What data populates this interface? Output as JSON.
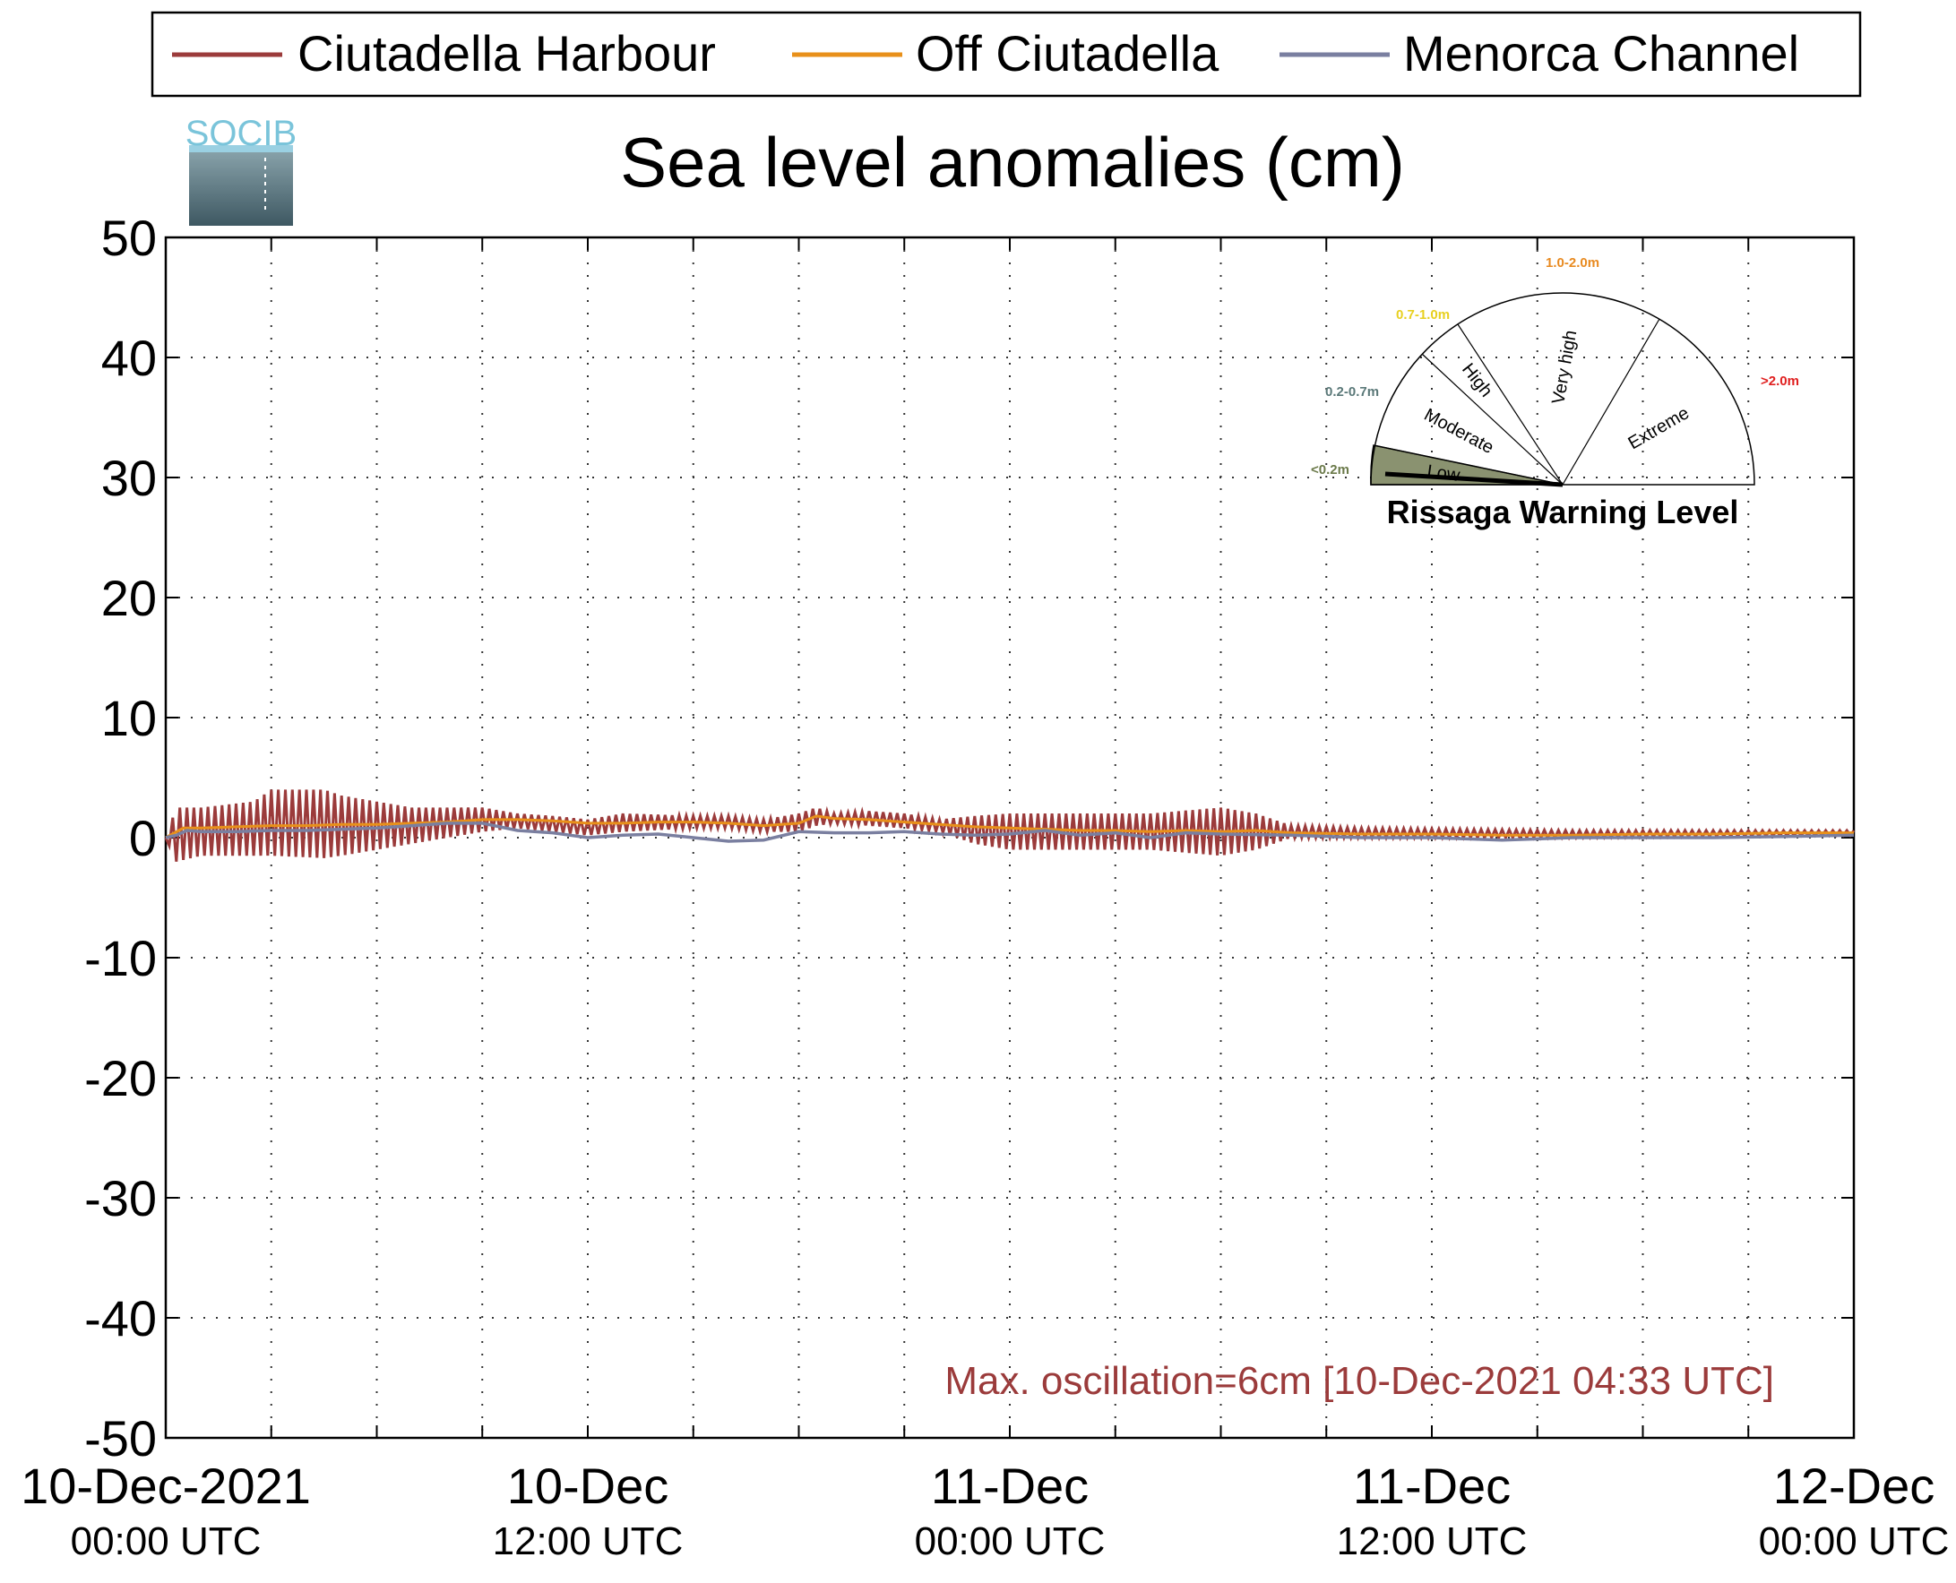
{
  "chart_data": {
    "type": "line",
    "title": "Sea level anomalies (cm)",
    "logo_text": "SOCIB",
    "ylim": [
      -50,
      50
    ],
    "yticks": [
      50,
      40,
      30,
      20,
      10,
      0,
      -10,
      -20,
      -30,
      -40,
      -50
    ],
    "xrange_hours": [
      0,
      48
    ],
    "xticks": [
      {
        "h": 0,
        "line1": "10-Dec-2021",
        "line2": "00:00 UTC"
      },
      {
        "h": 12,
        "line1": "10-Dec",
        "line2": "12:00 UTC"
      },
      {
        "h": 24,
        "line1": "11-Dec",
        "line2": "00:00 UTC"
      },
      {
        "h": 36,
        "line1": "11-Dec",
        "line2": "12:00 UTC"
      },
      {
        "h": 48,
        "line1": "12-Dec",
        "line2": "00:00 UTC"
      }
    ],
    "minor_grid_hours": [
      3,
      6,
      9,
      15,
      18,
      21,
      27,
      30,
      33,
      39,
      42,
      45
    ],
    "grid": true,
    "legend": {
      "placement": "top",
      "entries": [
        {
          "name": "Ciutadella Harbour",
          "color": "#9b3b3b"
        },
        {
          "name": "Off Ciutadella",
          "color": "#e8901a"
        },
        {
          "name": "Menorca Channel",
          "color": "#7a7fa0"
        }
      ]
    },
    "series": [
      {
        "name": "Ciutadella Harbour",
        "color": "#9b3b3b",
        "envelope": [
          {
            "h": 0,
            "low": 0,
            "high": 0
          },
          {
            "h": 0.3,
            "low": -2,
            "high": 2.5
          },
          {
            "h": 1,
            "low": -1.5,
            "high": 2.5
          },
          {
            "h": 2.5,
            "low": -1.5,
            "high": 3
          },
          {
            "h": 3,
            "low": -1.5,
            "high": 4
          },
          {
            "h": 4.5,
            "low": -1.7,
            "high": 4
          },
          {
            "h": 5,
            "low": -1.5,
            "high": 3.5
          },
          {
            "h": 6,
            "low": -1,
            "high": 3
          },
          {
            "h": 7,
            "low": -0.5,
            "high": 2.5
          },
          {
            "h": 8,
            "low": 0,
            "high": 2.5
          },
          {
            "h": 9,
            "low": 0.5,
            "high": 2.5
          },
          {
            "h": 10,
            "low": 0.8,
            "high": 2
          },
          {
            "h": 11,
            "low": 0.5,
            "high": 1.8
          },
          {
            "h": 12,
            "low": 0.2,
            "high": 1.5
          },
          {
            "h": 13,
            "low": 0.5,
            "high": 2
          },
          {
            "h": 15,
            "low": 0.8,
            "high": 1.8
          },
          {
            "h": 16,
            "low": 0.8,
            "high": 1.8
          },
          {
            "h": 17,
            "low": 0.5,
            "high": 1.5
          },
          {
            "h": 18,
            "low": 0.5,
            "high": 2
          },
          {
            "h": 18.5,
            "low": 1,
            "high": 2.5
          },
          {
            "h": 19,
            "low": 1.2,
            "high": 2
          },
          {
            "h": 20,
            "low": 1,
            "high": 2.2
          },
          {
            "h": 21,
            "low": 0.8,
            "high": 2
          },
          {
            "h": 22,
            "low": 0.5,
            "high": 1.5
          },
          {
            "h": 23,
            "low": -0.5,
            "high": 1.8
          },
          {
            "h": 24,
            "low": -1,
            "high": 2
          },
          {
            "h": 26,
            "low": -1,
            "high": 2
          },
          {
            "h": 28,
            "low": -1,
            "high": 2
          },
          {
            "h": 30,
            "low": -1.5,
            "high": 2.5
          },
          {
            "h": 31,
            "low": -1,
            "high": 2
          },
          {
            "h": 32,
            "low": 0,
            "high": 1
          },
          {
            "h": 34,
            "low": 0,
            "high": 0.8
          },
          {
            "h": 40,
            "low": 0,
            "high": 0.6
          },
          {
            "h": 48,
            "low": 0.2,
            "high": 0.6
          }
        ]
      },
      {
        "name": "Off Ciutadella",
        "color": "#e8901a",
        "x": [
          0,
          0.5,
          1,
          2,
          3,
          4,
          5,
          6,
          7,
          8,
          9,
          10,
          11,
          12,
          13,
          14,
          15,
          16,
          17,
          18,
          18.5,
          19,
          20,
          21,
          22,
          23,
          24,
          25,
          26,
          27,
          28,
          29,
          30,
          31,
          32,
          34,
          36,
          38,
          40,
          42,
          44,
          46,
          48
        ],
        "y": [
          0,
          0.8,
          0.8,
          0.9,
          1,
          1,
          1.1,
          1.1,
          1.2,
          1.3,
          1.5,
          1.5,
          1.4,
          1.2,
          1.2,
          1.3,
          1.3,
          1.2,
          1,
          1.2,
          1.8,
          1.6,
          1.5,
          1.3,
          1.1,
          0.9,
          0.8,
          0.7,
          0.6,
          0.6,
          0.5,
          0.6,
          0.5,
          0.6,
          0.4,
          0.3,
          0.3,
          0.2,
          0.2,
          0.3,
          0.3,
          0.4,
          0.4
        ]
      },
      {
        "name": "Menorca Channel",
        "color": "#7a7fa0",
        "x": [
          0,
          0.3,
          0.6,
          1,
          2,
          3,
          4,
          5,
          6,
          7,
          8,
          9,
          10,
          11,
          12,
          13,
          14,
          15,
          16,
          17,
          18,
          19,
          20,
          21,
          22,
          23,
          24,
          25,
          26,
          27,
          28,
          29,
          30,
          32,
          34,
          36,
          38,
          40,
          42,
          44,
          46,
          48
        ],
        "y": [
          0,
          0.2,
          0.6,
          0.5,
          0.5,
          0.6,
          0.6,
          0.7,
          0.8,
          1,
          1.2,
          1.2,
          0.6,
          0.4,
          0,
          0.2,
          0.3,
          0,
          -0.3,
          -0.2,
          0.5,
          0.4,
          0.4,
          0.5,
          0.3,
          0.2,
          0.3,
          0.6,
          0.2,
          0.4,
          0,
          0.4,
          0.3,
          0.2,
          0,
          0,
          -0.2,
          0,
          0,
          0,
          0.1,
          0.2
        ]
      }
    ],
    "annotation": {
      "text": "Max. oscillation=6cm [10-Dec-2021 04:33 UTC]",
      "color": "#9b3b3b"
    },
    "gauge": {
      "title": "Rissaga Warning Level",
      "current_level": "Low",
      "sectors": [
        {
          "label": "Low",
          "range": "<0.2m",
          "range_color": "#6b7a4a",
          "fill": "#8a9270"
        },
        {
          "label": "Moderate",
          "range": "0.2-0.7m",
          "range_color": "#5a7878",
          "fill": "#ffffff"
        },
        {
          "label": "High",
          "range": "0.7-1.0m",
          "range_color": "#e8d020",
          "fill": "#ffffff"
        },
        {
          "label": "Very high",
          "range": "1.0-2.0m",
          "range_color": "#e88a20",
          "fill": "#ffffff"
        },
        {
          "label": "Extreme",
          "range": ">2.0m",
          "range_color": "#e02020",
          "fill": "#ffffff"
        }
      ]
    }
  }
}
